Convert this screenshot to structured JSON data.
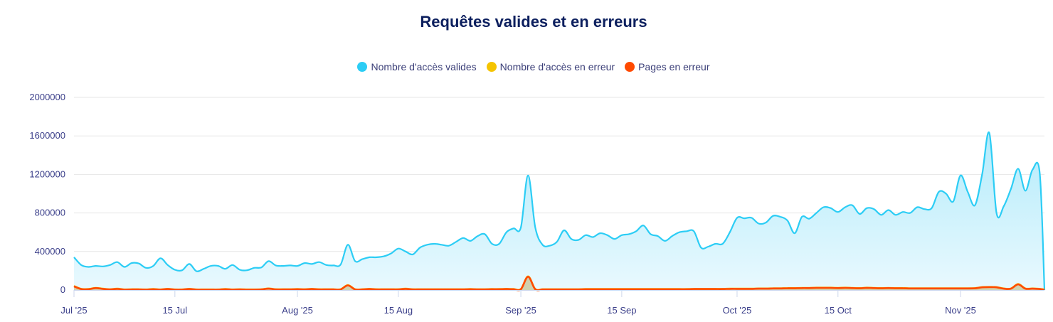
{
  "chart_data": {
    "type": "area",
    "title": "Requêtes valides et en erreurs",
    "x_start": "2025-07-01",
    "x_interval": "1 day",
    "x_ticks": [
      "Jul '25",
      "15 Jul",
      "Aug '25",
      "15 Aug",
      "Sep '25",
      "15 Sep",
      "Oct '25",
      "15 Oct",
      "Nov '25"
    ],
    "x_tick_dates": [
      "2025-07-01",
      "2025-07-15",
      "2025-08-01",
      "2025-08-15",
      "2025-09-01",
      "2025-09-15",
      "2025-10-01",
      "2025-10-15",
      "2025-11-01"
    ],
    "y_ticks": [
      "0",
      "400000",
      "800000",
      "1200000",
      "1600000",
      "2000000"
    ],
    "ylim": [
      0,
      2000000
    ],
    "grid": true,
    "legend_position": "top-center",
    "series": [
      {
        "name": "Nombre d'accès valides",
        "color": "#2ccdf5",
        "values": [
          340000,
          260000,
          240000,
          250000,
          245000,
          260000,
          290000,
          240000,
          280000,
          275000,
          230000,
          250000,
          330000,
          260000,
          210000,
          205000,
          270000,
          195000,
          220000,
          250000,
          250000,
          220000,
          260000,
          210000,
          205000,
          230000,
          235000,
          300000,
          255000,
          250000,
          255000,
          250000,
          280000,
          270000,
          290000,
          260000,
          255000,
          265000,
          470000,
          300000,
          320000,
          340000,
          340000,
          350000,
          380000,
          430000,
          400000,
          370000,
          440000,
          470000,
          480000,
          470000,
          460000,
          500000,
          540000,
          510000,
          560000,
          580000,
          480000,
          480000,
          600000,
          640000,
          650000,
          1190000,
          650000,
          470000,
          460000,
          500000,
          620000,
          530000,
          520000,
          570000,
          550000,
          590000,
          570000,
          530000,
          570000,
          580000,
          610000,
          670000,
          580000,
          560000,
          510000,
          560000,
          600000,
          610000,
          610000,
          440000,
          450000,
          480000,
          480000,
          600000,
          750000,
          745000,
          750000,
          690000,
          700000,
          770000,
          760000,
          720000,
          590000,
          760000,
          740000,
          800000,
          860000,
          850000,
          810000,
          860000,
          880000,
          790000,
          850000,
          840000,
          780000,
          830000,
          780000,
          810000,
          800000,
          860000,
          840000,
          850000,
          1020000,
          1000000,
          920000,
          1190000,
          1020000,
          880000,
          1200000,
          1630000,
          800000,
          870000,
          1050000,
          1260000,
          1030000,
          1250000,
          1210000,
          0
        ]
      },
      {
        "name": "Nombre d'accès en erreur",
        "color": "#f5c400",
        "values": [
          42000,
          12000,
          10000,
          22000,
          14000,
          8000,
          14000,
          6000,
          8000,
          8000,
          6000,
          10000,
          6000,
          12000,
          6000,
          6000,
          12000,
          6000,
          6000,
          6000,
          6000,
          10000,
          6000,
          8000,
          6000,
          6000,
          8000,
          16000,
          8000,
          8000,
          8000,
          10000,
          8000,
          12000,
          8000,
          8000,
          8000,
          8000,
          52000,
          8000,
          8000,
          12000,
          8000,
          8000,
          8000,
          8000,
          14000,
          8000,
          8000,
          8000,
          8000,
          8000,
          8000,
          8000,
          8000,
          10000,
          8000,
          8000,
          10000,
          10000,
          12000,
          10000,
          10000,
          142000,
          10000,
          8000,
          8000,
          8000,
          8000,
          8000,
          8000,
          10000,
          10000,
          10000,
          10000,
          10000,
          10000,
          10000,
          10000,
          10000,
          10000,
          10000,
          10000,
          10000,
          10000,
          10000,
          12000,
          12000,
          12000,
          12000,
          12000,
          14000,
          14000,
          14000,
          14000,
          16000,
          16000,
          18000,
          18000,
          20000,
          20000,
          22000,
          22000,
          24000,
          24000,
          24000,
          22000,
          24000,
          22000,
          20000,
          24000,
          22000,
          20000,
          22000,
          20000,
          20000,
          18000,
          18000,
          18000,
          18000,
          18000,
          18000,
          18000,
          18000,
          18000,
          20000,
          30000,
          32000,
          30000,
          16000,
          16000,
          62000,
          16000,
          16000,
          12000,
          6000
        ]
      },
      {
        "name": "Pages en erreur",
        "color": "#ff4a00",
        "values": [
          38000,
          10000,
          8000,
          20000,
          12000,
          6000,
          12000,
          4000,
          6000,
          6000,
          4000,
          8000,
          4000,
          10000,
          4000,
          4000,
          10000,
          4000,
          4000,
          4000,
          4000,
          8000,
          4000,
          6000,
          4000,
          4000,
          6000,
          14000,
          6000,
          6000,
          6000,
          8000,
          6000,
          10000,
          6000,
          6000,
          6000,
          6000,
          48000,
          6000,
          6000,
          10000,
          6000,
          6000,
          6000,
          6000,
          12000,
          6000,
          6000,
          6000,
          6000,
          6000,
          6000,
          6000,
          6000,
          8000,
          6000,
          6000,
          8000,
          8000,
          10000,
          8000,
          8000,
          138000,
          8000,
          6000,
          6000,
          6000,
          6000,
          6000,
          6000,
          8000,
          8000,
          8000,
          8000,
          8000,
          8000,
          8000,
          8000,
          8000,
          8000,
          8000,
          8000,
          8000,
          8000,
          8000,
          10000,
          10000,
          10000,
          10000,
          10000,
          12000,
          12000,
          12000,
          12000,
          14000,
          14000,
          16000,
          16000,
          18000,
          18000,
          20000,
          20000,
          22000,
          22000,
          22000,
          20000,
          22000,
          20000,
          18000,
          22000,
          20000,
          18000,
          20000,
          18000,
          18000,
          16000,
          16000,
          16000,
          16000,
          16000,
          16000,
          16000,
          16000,
          16000,
          18000,
          28000,
          30000,
          28000,
          14000,
          14000,
          58000,
          14000,
          14000,
          10000,
          2000
        ]
      }
    ]
  }
}
